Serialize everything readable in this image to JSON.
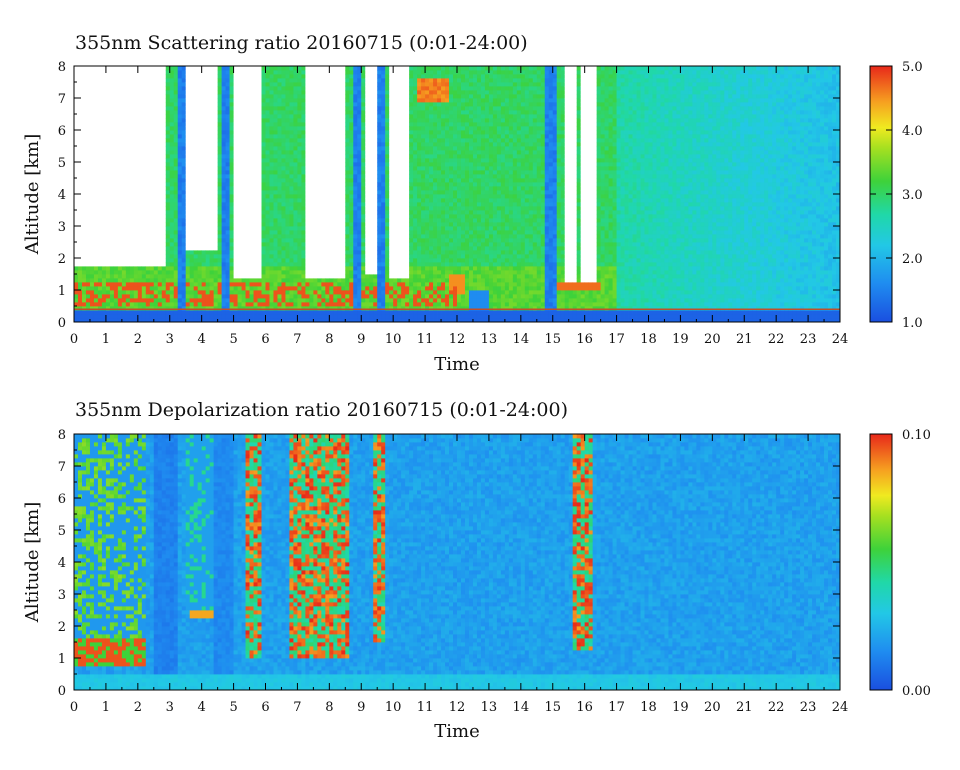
{
  "chart_data": [
    {
      "type": "heatmap",
      "title": "355nm Scattering ratio  20160715 (0:01-24:00)",
      "xlabel": "Time",
      "ylabel": "Altitude [km]",
      "xlim": [
        0,
        24
      ],
      "ylim": [
        0,
        8
      ],
      "xticks": [
        "0",
        "1",
        "2",
        "3",
        "4",
        "5",
        "6",
        "7",
        "8",
        "9",
        "10",
        "11",
        "12",
        "13",
        "14",
        "15",
        "16",
        "17",
        "18",
        "19",
        "20",
        "21",
        "22",
        "23",
        "24"
      ],
      "yticks": [
        "0",
        "1",
        "2",
        "3",
        "4",
        "5",
        "6",
        "7",
        "8"
      ],
      "colorbar": {
        "min": 1.0,
        "max": 5.0,
        "ticks": [
          "1.0",
          "2.0",
          "3.0",
          "4.0",
          "5.0"
        ]
      },
      "ground_level_km": 0.4,
      "features": [
        {
          "name": "low cloud/aerosol layer",
          "t_start": 0.0,
          "t_end": 12.0,
          "alt_km": [
            0.5,
            1.4
          ],
          "value": "high (>5)"
        },
        {
          "name": "cloud top layer",
          "t_start": 10.8,
          "t_end": 11.8,
          "alt_km": [
            6.9,
            7.6
          ],
          "value": "high"
        },
        {
          "name": "cloud layer",
          "t_start": 14.7,
          "t_end": 16.5,
          "alt_km": [
            1.0,
            1.3
          ],
          "value": "high"
        },
        {
          "name": "clear background",
          "t_start": 16.5,
          "t_end": 24.0,
          "alt_km": [
            0.5,
            8.0
          ],
          "value": "~2.0-2.6"
        }
      ]
    },
    {
      "type": "heatmap",
      "title": "355nm Depolarization ratio  20160715 (0:01-24:00)",
      "xlabel": "Time",
      "ylabel": "Altitude [km]",
      "xlim": [
        0,
        24
      ],
      "ylim": [
        0,
        8
      ],
      "xticks": [
        "0",
        "1",
        "2",
        "3",
        "4",
        "5",
        "6",
        "7",
        "8",
        "9",
        "10",
        "11",
        "12",
        "13",
        "14",
        "15",
        "16",
        "17",
        "18",
        "19",
        "20",
        "21",
        "22",
        "23",
        "24"
      ],
      "yticks": [
        "0",
        "1",
        "2",
        "3",
        "4",
        "5",
        "6",
        "7",
        "8"
      ],
      "colorbar": {
        "min": 0.0,
        "max": 0.1,
        "ticks": [
          "0.00",
          "0.10"
        ]
      },
      "features": [
        {
          "name": "high depolarization columns",
          "t_start": 7.0,
          "t_end": 8.6,
          "alt_km": [
            1.0,
            8.0
          ],
          "value": "high (~0.1)"
        },
        {
          "name": "high depolarization column",
          "t_start": 15.6,
          "t_end": 16.2,
          "alt_km": [
            1.2,
            8.0
          ],
          "value": "high (~0.1)"
        },
        {
          "name": "low cloud layer",
          "t_start": 0.2,
          "t_end": 2.0,
          "alt_km": [
            0.8,
            1.6
          ],
          "value": "high"
        },
        {
          "name": "background",
          "t_start": 9.0,
          "t_end": 24.0,
          "alt_km": [
            0.5,
            8.0
          ],
          "value": "~0.02-0.03"
        }
      ]
    }
  ]
}
